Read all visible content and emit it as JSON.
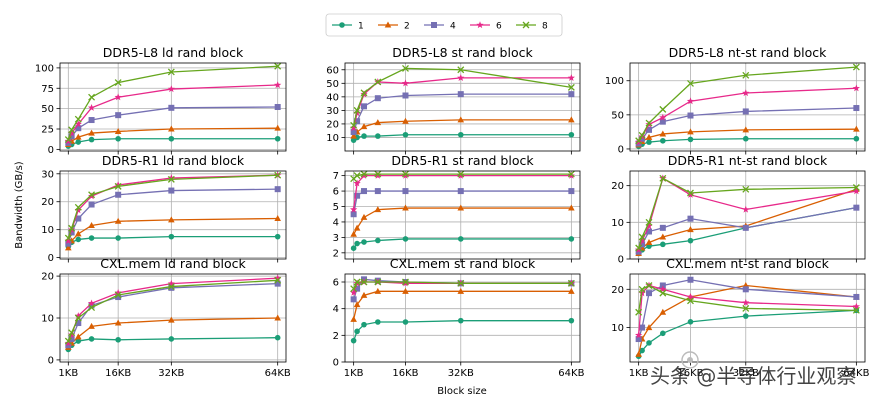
{
  "legend": {
    "position": "top-center",
    "entries": [
      {
        "label": "1",
        "color": "#1b9e77",
        "marker": "circle"
      },
      {
        "label": "2",
        "color": "#d95f02",
        "marker": "triangle"
      },
      {
        "label": "4",
        "color": "#7570b3",
        "marker": "square"
      },
      {
        "label": "6",
        "color": "#e7298a",
        "marker": "star"
      },
      {
        "label": "8",
        "color": "#66a61e",
        "marker": "x"
      }
    ]
  },
  "figure": {
    "ylabel": "Bandwidth (GB/s)",
    "xlabel": "Block size",
    "watermark_text": "头条 @半导体行业观察"
  },
  "chart_data": [
    {
      "type": "line",
      "title": "DDR5-L8 ld rand block",
      "x": [
        1,
        2,
        4,
        8,
        16,
        32,
        64
      ],
      "xticks": [
        "1KB",
        "16KB",
        "32KB",
        "64KB"
      ],
      "xtick_values": [
        1,
        16,
        32,
        64
      ],
      "xlim": [
        -1.5,
        66.5
      ],
      "ylim": [
        -2,
        106
      ],
      "yticks": [
        0,
        25,
        50,
        75,
        100
      ],
      "series": [
        {
          "name": "1",
          "values": [
            4,
            6,
            9,
            12,
            13,
            13,
            13
          ]
        },
        {
          "name": "2",
          "values": [
            6,
            10,
            15,
            20,
            22,
            25,
            26
          ]
        },
        {
          "name": "4",
          "values": [
            8,
            16,
            26,
            36,
            42,
            51,
            52
          ]
        },
        {
          "name": "6",
          "values": [
            10,
            20,
            31,
            51,
            64,
            74,
            79
          ]
        },
        {
          "name": "8",
          "values": [
            12,
            24,
            37,
            64,
            82,
            95,
            102
          ]
        }
      ]
    },
    {
      "type": "line",
      "title": "DDR5-L8 st rand block",
      "x": [
        1,
        2,
        4,
        8,
        16,
        32,
        64
      ],
      "xticks": [
        "1KB",
        "16KB",
        "32KB",
        "64KB"
      ],
      "xtick_values": [
        1,
        16,
        32,
        64
      ],
      "xlim": [
        -1.5,
        66.5
      ],
      "ylim": [
        0,
        65
      ],
      "yticks": [
        10,
        20,
        30,
        40,
        50,
        60
      ],
      "series": [
        {
          "name": "1",
          "values": [
            8,
            10,
            11,
            11,
            12,
            12,
            12
          ]
        },
        {
          "name": "2",
          "values": [
            11,
            14,
            18,
            21,
            22,
            23,
            23
          ]
        },
        {
          "name": "4",
          "values": [
            14,
            22,
            33,
            39,
            41,
            42,
            42
          ]
        },
        {
          "name": "6",
          "values": [
            17,
            28,
            42,
            51,
            50,
            54,
            54
          ]
        },
        {
          "name": "8",
          "values": [
            19,
            30,
            43,
            51,
            61,
            60,
            47
          ]
        }
      ]
    },
    {
      "type": "line",
      "title": "DDR5-L8 nt-st rand block",
      "x": [
        1,
        2,
        4,
        8,
        16,
        32,
        64
      ],
      "xticks": [
        "1KB",
        "16KB",
        "32KB",
        "64KB"
      ],
      "xtick_values": [
        1,
        16,
        32,
        64
      ],
      "xlim": [
        -1.5,
        66.5
      ],
      "ylim": [
        -3,
        126
      ],
      "yticks": [
        0,
        50,
        100
      ],
      "series": [
        {
          "name": "1",
          "values": [
            4,
            7,
            10,
            12,
            14,
            15,
            15
          ]
        },
        {
          "name": "2",
          "values": [
            6,
            11,
            17,
            22,
            25,
            28,
            29
          ]
        },
        {
          "name": "4",
          "values": [
            8,
            15,
            28,
            40,
            49,
            55,
            60
          ]
        },
        {
          "name": "6",
          "values": [
            10,
            18,
            36,
            46,
            70,
            82,
            89
          ]
        },
        {
          "name": "8",
          "values": [
            12,
            20,
            38,
            58,
            96,
            108,
            120
          ]
        }
      ]
    },
    {
      "type": "line",
      "title": "DDR5-R1 ld rand block",
      "x": [
        1,
        2,
        4,
        8,
        16,
        32,
        64
      ],
      "xticks": [
        "1KB",
        "16KB",
        "32KB",
        "64KB"
      ],
      "xtick_values": [
        1,
        16,
        32,
        64
      ],
      "xlim": [
        -1.5,
        66.5
      ],
      "ylim": [
        -0.5,
        31
      ],
      "yticks": [
        0,
        10,
        20,
        30
      ],
      "series": [
        {
          "name": "1",
          "values": [
            4,
            5.5,
            6.5,
            7,
            7,
            7.5,
            7.5
          ]
        },
        {
          "name": "2",
          "values": [
            3.5,
            6,
            8.5,
            11.5,
            13,
            13.5,
            14
          ]
        },
        {
          "name": "4",
          "values": [
            5,
            9,
            14,
            19,
            22.5,
            24,
            24.5
          ]
        },
        {
          "name": "6",
          "values": [
            6,
            10,
            17,
            22,
            26,
            28.5,
            29.5
          ]
        },
        {
          "name": "8",
          "values": [
            7,
            10.5,
            18,
            22.5,
            25.5,
            28,
            29.5
          ]
        }
      ]
    },
    {
      "type": "line",
      "title": "DDR5-R1 st rand block",
      "x": [
        1,
        2,
        4,
        8,
        16,
        32,
        64
      ],
      "xticks": [
        "1KB",
        "16KB",
        "32KB",
        "64KB"
      ],
      "xtick_values": [
        1,
        16,
        32,
        64
      ],
      "xlim": [
        -1.5,
        66.5
      ],
      "ylim": [
        1.6,
        7.3
      ],
      "yticks": [
        2,
        3,
        4,
        5,
        6,
        7
      ],
      "series": [
        {
          "name": "1",
          "values": [
            2.3,
            2.6,
            2.7,
            2.8,
            2.9,
            2.9,
            2.9
          ]
        },
        {
          "name": "2",
          "values": [
            3.2,
            3.6,
            4.3,
            4.8,
            4.9,
            4.9,
            4.9
          ]
        },
        {
          "name": "4",
          "values": [
            4.5,
            5.7,
            6.0,
            6.0,
            6.0,
            6.0,
            6.0
          ]
        },
        {
          "name": "6",
          "values": [
            4.8,
            6.5,
            7.0,
            7.0,
            7.0,
            7.0,
            7.0
          ]
        },
        {
          "name": "8",
          "values": [
            6.8,
            7.0,
            7.1,
            7.1,
            7.1,
            7.1,
            7.1
          ]
        }
      ]
    },
    {
      "type": "line",
      "title": "DDR5-R1 nt-st rand block",
      "x": [
        1,
        2,
        4,
        8,
        16,
        32,
        64
      ],
      "xticks": [
        "1KB",
        "16KB",
        "32KB",
        "64KB"
      ],
      "xtick_values": [
        1,
        16,
        32,
        64
      ],
      "xlim": [
        -1.5,
        66.5
      ],
      "ylim": [
        0,
        24
      ],
      "yticks": [
        0,
        10,
        20
      ],
      "series": [
        {
          "name": "1",
          "values": [
            1.5,
            2.5,
            3.5,
            4,
            5,
            8.5,
            14
          ]
        },
        {
          "name": "2",
          "values": [
            1.5,
            3,
            4.5,
            6,
            8,
            9,
            19
          ]
        },
        {
          "name": "4",
          "values": [
            2,
            4,
            7.5,
            8.5,
            11,
            8.5,
            14
          ]
        },
        {
          "name": "6",
          "values": [
            2.5,
            5,
            9,
            22,
            17.5,
            13.5,
            18.5
          ]
        },
        {
          "name": "8",
          "values": [
            3,
            6,
            10,
            22,
            18,
            19,
            19.5
          ]
        }
      ]
    },
    {
      "type": "line",
      "title": "CXL.mem ld rand block",
      "x": [
        1,
        2,
        4,
        8,
        16,
        32,
        64
      ],
      "xticks": [
        "1KB",
        "16KB",
        "32KB",
        "64KB"
      ],
      "xtick_values": [
        1,
        16,
        32,
        64
      ],
      "xlim": [
        -1.5,
        66.5
      ],
      "ylim": [
        -0.5,
        20.5
      ],
      "yticks": [
        0,
        10,
        20
      ],
      "series": [
        {
          "name": "1",
          "values": [
            2.5,
            3.5,
            4.5,
            5,
            4.8,
            5,
            5.3
          ]
        },
        {
          "name": "2",
          "values": [
            3,
            4,
            5.5,
            8,
            8.8,
            9.5,
            10
          ]
        },
        {
          "name": "4",
          "values": [
            3.5,
            5,
            8.8,
            13,
            15,
            17.2,
            18.2
          ]
        },
        {
          "name": "6",
          "values": [
            4,
            6,
            10.5,
            13.5,
            16,
            18.2,
            19.5
          ]
        },
        {
          "name": "8",
          "values": [
            4.5,
            6.5,
            10,
            12.5,
            15.5,
            17.5,
            19
          ]
        }
      ]
    },
    {
      "type": "line",
      "title": "CXL.mem st rand block",
      "x": [
        1,
        2,
        4,
        8,
        16,
        32,
        64
      ],
      "xticks": [
        "1KB",
        "16KB",
        "32KB",
        "64KB"
      ],
      "xtick_values": [
        1,
        16,
        32,
        64
      ],
      "xlim": [
        -1.5,
        66.5
      ],
      "ylim": [
        0,
        6.6
      ],
      "yticks": [
        0,
        2,
        4,
        6
      ],
      "series": [
        {
          "name": "1",
          "values": [
            1.6,
            2.3,
            2.8,
            3.0,
            3.0,
            3.1,
            3.1
          ]
        },
        {
          "name": "2",
          "values": [
            3.2,
            4.3,
            5.0,
            5.3,
            5.3,
            5.3,
            5.3
          ]
        },
        {
          "name": "4",
          "values": [
            4.7,
            5.5,
            6.2,
            6.1,
            6.0,
            5.9,
            5.9
          ]
        },
        {
          "name": "6",
          "values": [
            5.2,
            5.9,
            6.0,
            6.0,
            5.9,
            5.9,
            5.9
          ]
        },
        {
          "name": "8",
          "values": [
            5.5,
            6.0,
            6.0,
            6.0,
            6.0,
            5.9,
            5.9
          ]
        }
      ]
    },
    {
      "type": "line",
      "title": "CXL.mem nt-st rand block",
      "x": [
        1,
        2,
        4,
        8,
        16,
        32,
        64
      ],
      "xticks": [
        "1KB",
        "16KB",
        "32KB",
        "64KB"
      ],
      "xtick_values": [
        1,
        16,
        32,
        64
      ],
      "xlim": [
        -1.5,
        66.5
      ],
      "ylim": [
        1,
        24
      ],
      "yticks": [
        10,
        20
      ],
      "series": [
        {
          "name": "1",
          "values": [
            2.5,
            4,
            6,
            8.5,
            11.5,
            13,
            14.5
          ]
        },
        {
          "name": "2",
          "values": [
            3,
            7,
            10,
            14,
            18,
            21,
            18
          ]
        },
        {
          "name": "4",
          "values": [
            7,
            10,
            19,
            21,
            22.5,
            20,
            18
          ]
        },
        {
          "name": "6",
          "values": [
            8,
            19,
            21,
            20,
            18,
            16.5,
            15.5
          ]
        },
        {
          "name": "8",
          "values": [
            14,
            20,
            21,
            19,
            17,
            15,
            14.5
          ]
        }
      ]
    }
  ]
}
